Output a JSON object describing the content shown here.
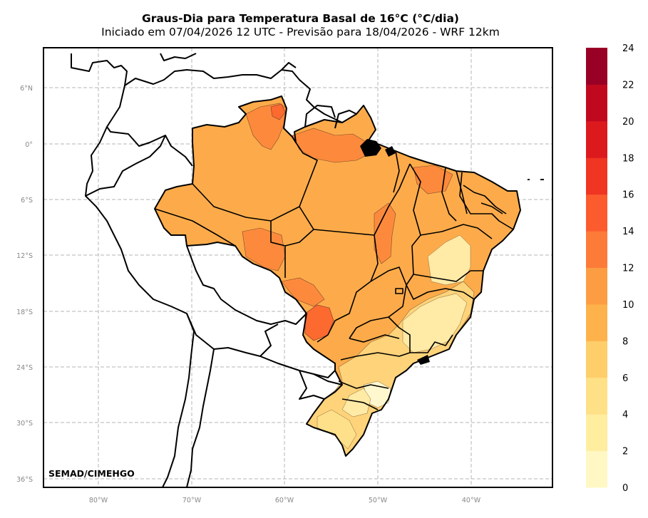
{
  "title": "Graus-Dia para Temperatura Basal de 16°C (°C/dia)",
  "subtitle": "Iniciado em 07/04/2026 12 UTC - Previsão para 18/04/2026 - WRF 12km",
  "credit": "SEMAD/CIMEHGO",
  "lat_labels": [
    "6°N",
    "0°",
    "6°S",
    "12°S",
    "18°S",
    "24°S",
    "30°S",
    "36°S"
  ],
  "lon_labels": [
    "80°W",
    "70°W",
    "60°W",
    "50°W",
    "40°W"
  ],
  "colorbar": {
    "labels": [
      "0",
      "2",
      "4",
      "6",
      "8",
      "10",
      "12",
      "14",
      "16",
      "18",
      "20",
      "22",
      "24"
    ],
    "colors": [
      "#fff8c4",
      "#ffeda0",
      "#fee187",
      "#fece6a",
      "#feb24c",
      "#fd9d43",
      "#fd7b39",
      "#fc5b2e",
      "#f03523",
      "#dc1a1e",
      "#c0091f",
      "#990026"
    ]
  }
}
